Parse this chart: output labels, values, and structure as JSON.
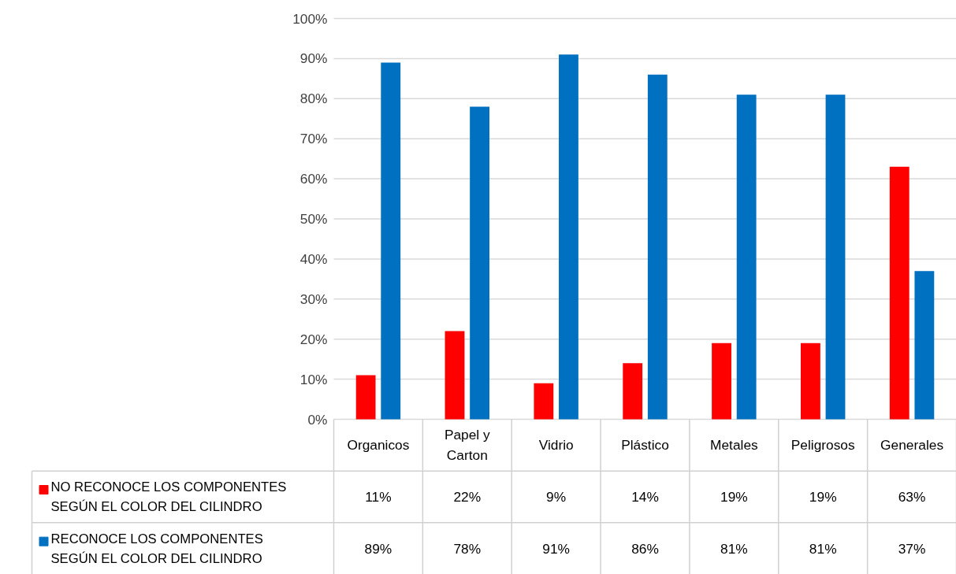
{
  "chart_data": {
    "type": "bar",
    "categories": [
      "Organicos",
      "Papel y Carton",
      "Vidrio",
      "Plástico",
      "Metales",
      "Peligrosos",
      "Generales"
    ],
    "series": [
      {
        "name": "NO RECONOCE LOS COMPONENTES SEGÚN EL COLOR DEL CILINDRO",
        "color": "#ff0000",
        "values": [
          11,
          22,
          9,
          14,
          19,
          19,
          63
        ],
        "value_labels": [
          "11%",
          "22%",
          "9%",
          "14%",
          "19%",
          "19%",
          "63%"
        ]
      },
      {
        "name": "RECONOCE LOS COMPONENTES SEGÚN EL COLOR DEL CILINDRO",
        "color": "#0070c0",
        "values": [
          89,
          78,
          91,
          86,
          81,
          81,
          37
        ],
        "value_labels": [
          "89%",
          "78%",
          "91%",
          "86%",
          "81%",
          "81%",
          "37%"
        ]
      }
    ],
    "ylim": [
      0,
      100
    ],
    "yticks": [
      {
        "value": 0,
        "label": "0%"
      },
      {
        "value": 10,
        "label": "10%"
      },
      {
        "value": 20,
        "label": "20%"
      },
      {
        "value": 30,
        "label": "30%"
      },
      {
        "value": 40,
        "label": "40%"
      },
      {
        "value": 50,
        "label": "50%"
      },
      {
        "value": 60,
        "label": "60%"
      },
      {
        "value": 70,
        "label": "70%"
      },
      {
        "value": 80,
        "label": "80%"
      },
      {
        "value": 90,
        "label": "90%"
      },
      {
        "value": 100,
        "label": "100%"
      }
    ],
    "grid": "y",
    "legend": "bottom"
  }
}
